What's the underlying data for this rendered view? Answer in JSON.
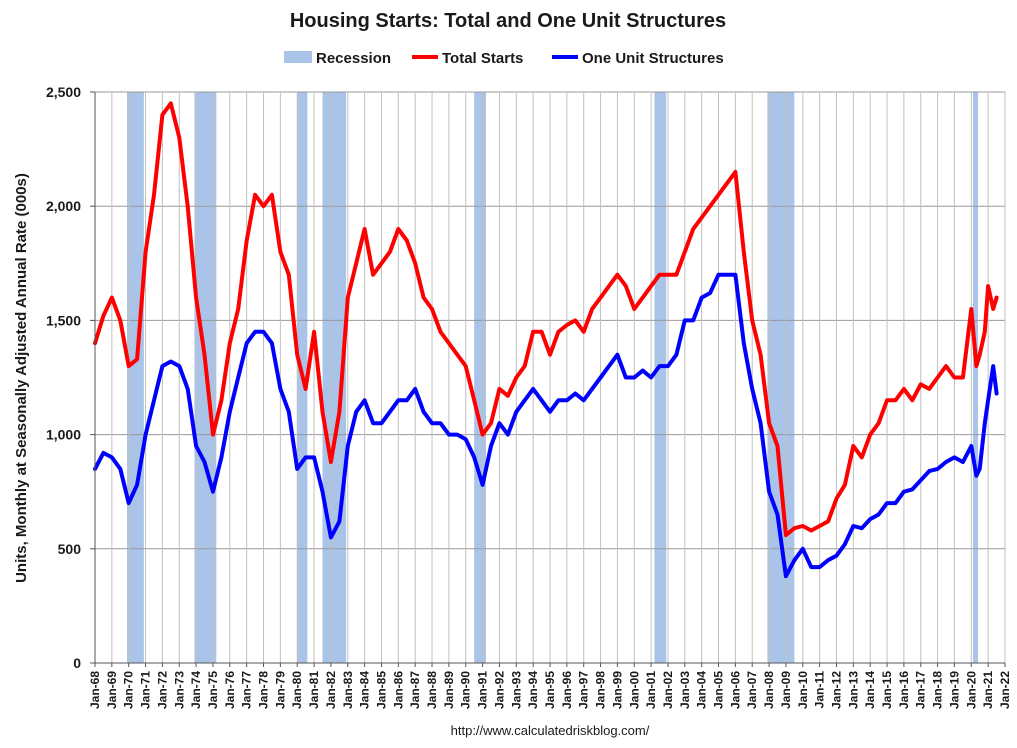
{
  "chart_data": {
    "type": "line",
    "title": "Housing Starts: Total and One Unit Structures",
    "ylabel": "Units, Monthly at Seasonally Adjusted Annual Rate (000s)",
    "xlabel": "",
    "ylim": [
      0,
      2500
    ],
    "yticks": [
      0,
      500,
      1000,
      1500,
      2000,
      2500
    ],
    "ytick_labels": [
      "0",
      "500",
      "1,000",
      "1,500",
      "2,000",
      "2,500"
    ],
    "xlim": [
      1968.0,
      2022.0
    ],
    "xtick_labels": [
      "Jan-68",
      "Jan-69",
      "Jan-70",
      "Jan-71",
      "Jan-72",
      "Jan-73",
      "Jan-74",
      "Jan-75",
      "Jan-76",
      "Jan-77",
      "Jan-78",
      "Jan-79",
      "Jan-80",
      "Jan-81",
      "Jan-82",
      "Jan-83",
      "Jan-84",
      "Jan-85",
      "Jan-86",
      "Jan-87",
      "Jan-88",
      "Jan-89",
      "Jan-90",
      "Jan-91",
      "Jan-92",
      "Jan-93",
      "Jan-94",
      "Jan-95",
      "Jan-96",
      "Jan-97",
      "Jan-98",
      "Jan-99",
      "Jan-00",
      "Jan-01",
      "Jan-02",
      "Jan-03",
      "Jan-04",
      "Jan-05",
      "Jan-06",
      "Jan-07",
      "Jan-08",
      "Jan-09",
      "Jan-10",
      "Jan-11",
      "Jan-12",
      "Jan-13",
      "Jan-14",
      "Jan-15",
      "Jan-16",
      "Jan-17",
      "Jan-18",
      "Jan-19",
      "Jan-20",
      "Jan-21",
      "Jan-22"
    ],
    "legend": [
      "Recession",
      "Total Starts",
      "One Unit Structures"
    ],
    "legend_position": "top",
    "grid": "vertical and horizontal",
    "recessions": [
      [
        1969.9,
        1970.9
      ],
      [
        1973.9,
        1975.2
      ],
      [
        1980.0,
        1980.6
      ],
      [
        1981.5,
        1982.9
      ],
      [
        1990.5,
        1991.2
      ],
      [
        2001.2,
        2001.9
      ],
      [
        2007.9,
        2009.5
      ],
      [
        2020.1,
        2020.4
      ]
    ],
    "series": [
      {
        "name": "Total Starts",
        "color": "#ff0000",
        "x": [
          1968.0,
          1968.5,
          1969.0,
          1969.5,
          1970.0,
          1970.5,
          1971.0,
          1971.5,
          1972.0,
          1972.5,
          1973.0,
          1973.5,
          1974.0,
          1974.5,
          1975.0,
          1975.5,
          1976.0,
          1976.5,
          1977.0,
          1977.5,
          1978.0,
          1978.5,
          1979.0,
          1979.5,
          1980.0,
          1980.5,
          1981.0,
          1981.5,
          1982.0,
          1982.5,
          1983.0,
          1983.5,
          1984.0,
          1984.5,
          1985.0,
          1985.5,
          1986.0,
          1986.5,
          1987.0,
          1987.5,
          1988.0,
          1988.5,
          1989.0,
          1989.5,
          1990.0,
          1990.5,
          1991.0,
          1991.5,
          1992.0,
          1992.5,
          1993.0,
          1993.5,
          1994.0,
          1994.5,
          1995.0,
          1995.5,
          1996.0,
          1996.5,
          1997.0,
          1997.5,
          1998.0,
          1998.5,
          1999.0,
          1999.5,
          2000.0,
          2000.5,
          2001.0,
          2001.5,
          2002.0,
          2002.5,
          2003.0,
          2003.5,
          2004.0,
          2004.5,
          2005.0,
          2005.5,
          2006.0,
          2006.5,
          2007.0,
          2007.5,
          2008.0,
          2008.5,
          2009.0,
          2009.5,
          2010.0,
          2010.5,
          2011.0,
          2011.5,
          2012.0,
          2012.5,
          2013.0,
          2013.5,
          2014.0,
          2014.5,
          2015.0,
          2015.5,
          2016.0,
          2016.5,
          2017.0,
          2017.5,
          2018.0,
          2018.5,
          2019.0,
          2019.5,
          2020.0,
          2020.3,
          2020.5,
          2020.8,
          2021.0,
          2021.3,
          2021.5
        ],
        "values": [
          1400,
          1520,
          1600,
          1500,
          1300,
          1330,
          1800,
          2050,
          2400,
          2450,
          2300,
          2000,
          1600,
          1350,
          1000,
          1150,
          1400,
          1550,
          1850,
          2050,
          2000,
          2050,
          1800,
          1700,
          1350,
          1200,
          1450,
          1100,
          880,
          1100,
          1600,
          1750,
          1900,
          1700,
          1750,
          1800,
          1900,
          1850,
          1750,
          1600,
          1550,
          1450,
          1400,
          1350,
          1300,
          1150,
          1000,
          1050,
          1200,
          1170,
          1250,
          1300,
          1450,
          1450,
          1350,
          1450,
          1480,
          1500,
          1450,
          1550,
          1600,
          1650,
          1700,
          1650,
          1550,
          1600,
          1650,
          1700,
          1700,
          1700,
          1800,
          1900,
          1950,
          2000,
          2050,
          2100,
          2150,
          1800,
          1500,
          1350,
          1050,
          950,
          560,
          590,
          600,
          580,
          600,
          620,
          720,
          780,
          950,
          900,
          1000,
          1050,
          1150,
          1150,
          1200,
          1150,
          1220,
          1200,
          1250,
          1300,
          1250,
          1250,
          1550,
          1300,
          1350,
          1450,
          1650,
          1550,
          1600
        ]
      },
      {
        "name": "One Unit Structures",
        "color": "#0000ff",
        "x": [
          1968.0,
          1968.5,
          1969.0,
          1969.5,
          1970.0,
          1970.5,
          1971.0,
          1971.5,
          1972.0,
          1972.5,
          1973.0,
          1973.5,
          1974.0,
          1974.5,
          1975.0,
          1975.5,
          1976.0,
          1976.5,
          1977.0,
          1977.5,
          1978.0,
          1978.5,
          1979.0,
          1979.5,
          1980.0,
          1980.5,
          1981.0,
          1981.5,
          1982.0,
          1982.5,
          1983.0,
          1983.5,
          1984.0,
          1984.5,
          1985.0,
          1985.5,
          1986.0,
          1986.5,
          1987.0,
          1987.5,
          1988.0,
          1988.5,
          1989.0,
          1989.5,
          1990.0,
          1990.5,
          1991.0,
          1991.5,
          1992.0,
          1992.5,
          1993.0,
          1993.5,
          1994.0,
          1994.5,
          1995.0,
          1995.5,
          1996.0,
          1996.5,
          1997.0,
          1997.5,
          1998.0,
          1998.5,
          1999.0,
          1999.5,
          2000.0,
          2000.5,
          2001.0,
          2001.5,
          2002.0,
          2002.5,
          2003.0,
          2003.5,
          2004.0,
          2004.5,
          2005.0,
          2005.5,
          2006.0,
          2006.5,
          2007.0,
          2007.5,
          2008.0,
          2008.5,
          2009.0,
          2009.5,
          2010.0,
          2010.5,
          2011.0,
          2011.5,
          2012.0,
          2012.5,
          2013.0,
          2013.5,
          2014.0,
          2014.5,
          2015.0,
          2015.5,
          2016.0,
          2016.5,
          2017.0,
          2017.5,
          2018.0,
          2018.5,
          2019.0,
          2019.5,
          2020.0,
          2020.3,
          2020.5,
          2020.8,
          2021.0,
          2021.3,
          2021.5
        ],
        "values": [
          850,
          920,
          900,
          850,
          700,
          780,
          1000,
          1150,
          1300,
          1320,
          1300,
          1200,
          950,
          880,
          750,
          900,
          1100,
          1250,
          1400,
          1450,
          1450,
          1400,
          1200,
          1100,
          850,
          900,
          900,
          750,
          550,
          620,
          950,
          1100,
          1150,
          1050,
          1050,
          1100,
          1150,
          1150,
          1200,
          1100,
          1050,
          1050,
          1000,
          1000,
          980,
          900,
          780,
          950,
          1050,
          1000,
          1100,
          1150,
          1200,
          1150,
          1100,
          1150,
          1150,
          1180,
          1150,
          1200,
          1250,
          1300,
          1350,
          1250,
          1250,
          1280,
          1250,
          1300,
          1300,
          1350,
          1500,
          1500,
          1600,
          1620,
          1700,
          1700,
          1700,
          1400,
          1200,
          1050,
          750,
          650,
          380,
          450,
          500,
          420,
          420,
          450,
          470,
          520,
          600,
          590,
          630,
          650,
          700,
          700,
          750,
          760,
          800,
          840,
          850,
          880,
          900,
          880,
          950,
          820,
          850,
          1050,
          1150,
          1300,
          1180
        ]
      }
    ]
  },
  "source_text": "http://www.calculatedriskblog.com/",
  "colors": {
    "recession": "#a9c4e8",
    "total": "#ff0000",
    "one_unit": "#0000ff",
    "grid": "#999999"
  }
}
